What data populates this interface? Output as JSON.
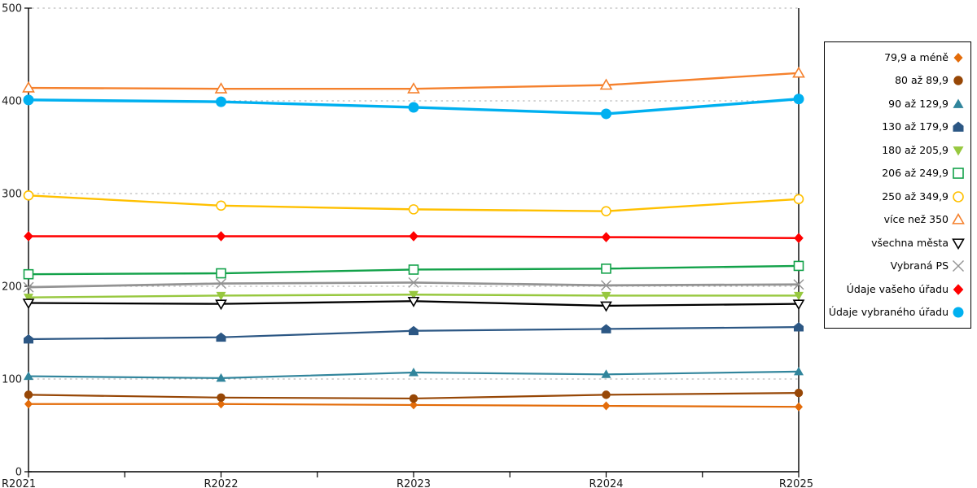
{
  "chart_data": {
    "type": "line",
    "categories": [
      "R2021",
      "R2022",
      "R2023",
      "R2024",
      "R2025"
    ],
    "series": [
      {
        "name": "79,9 a méně",
        "values": [
          73,
          73,
          72,
          71,
          70
        ],
        "color": "#E36C0A",
        "marker": "diamond",
        "line_width": 2.2,
        "marker_size": 5
      },
      {
        "name": "80 až 89,9",
        "values": [
          83,
          80,
          79,
          83,
          85
        ],
        "color": "#974706",
        "marker": "circle",
        "line_width": 2.2,
        "marker_size": 5.2
      },
      {
        "name": "90 až 129,9",
        "values": [
          103,
          101,
          107,
          105,
          108
        ],
        "color": "#31859C",
        "marker": "triangle-up",
        "line_width": 2.2,
        "marker_size": 6
      },
      {
        "name": "130 až 179,9",
        "values": [
          143,
          145,
          152,
          154,
          156
        ],
        "color": "#2C5784",
        "marker": "pentagon",
        "line_width": 2.2,
        "marker_size": 6
      },
      {
        "name": "180 až 205,9",
        "values": [
          188,
          190,
          191,
          190,
          190
        ],
        "color": "#97C83F",
        "marker": "triangle-down",
        "line_width": 2.4,
        "marker_size": 6
      },
      {
        "name": "206 až 249,9",
        "values": [
          213,
          214,
          218,
          219,
          222
        ],
        "color": "#13A24A",
        "marker": "square-open",
        "line_width": 2.4,
        "marker_size": 5.5
      },
      {
        "name": "250 až 349,9",
        "values": [
          298,
          287,
          283,
          281,
          294
        ],
        "color": "#FFC000",
        "marker": "circle-open",
        "line_width": 2.4,
        "marker_size": 5.5
      },
      {
        "name": "více než 350",
        "values": [
          414,
          413,
          413,
          417,
          430
        ],
        "color": "#F5812D",
        "marker": "triangle-up-open",
        "line_width": 2.4,
        "marker_size": 6.5
      },
      {
        "name": "všechna města",
        "values": [
          182,
          181,
          184,
          179,
          181
        ],
        "color": "#000000",
        "marker": "triangle-down-open",
        "line_width": 2.3,
        "marker_size": 6
      },
      {
        "name": "Vybraná PS",
        "values": [
          199,
          203,
          204,
          201,
          202
        ],
        "color": "#939393",
        "marker": "x",
        "line_width": 2.7,
        "marker_size": 6
      },
      {
        "name": "Údaje vašeho úřadu",
        "values": [
          254,
          254,
          254,
          253,
          252
        ],
        "color": "#FF0000",
        "marker": "diamond",
        "line_width": 2.5,
        "marker_size": 5.8
      },
      {
        "name": "Údaje vybraného úřadu",
        "values": [
          401,
          399,
          393,
          386,
          402
        ],
        "color": "#00B0F0",
        "marker": "circle",
        "line_width": 3.4,
        "marker_size": 6.5
      }
    ],
    "title": "",
    "xlabel": "",
    "ylabel": "",
    "ylim": [
      0,
      500
    ],
    "yticks": [
      0,
      100,
      200,
      300,
      400,
      500
    ],
    "grid": "horizontal-dashed",
    "legend_position": "right"
  },
  "axes": {
    "y_tick_labels": [
      "0",
      "100",
      "200",
      "300",
      "400",
      "500"
    ],
    "x_tick_labels": [
      "R2021",
      "R2022",
      "R2023",
      "R2024",
      "R2025"
    ]
  },
  "style_colors": {
    "background": "#FFFFFF",
    "axis": "#000000",
    "gridline": "#ABABAB",
    "tick_label": "#1A1A1A"
  }
}
